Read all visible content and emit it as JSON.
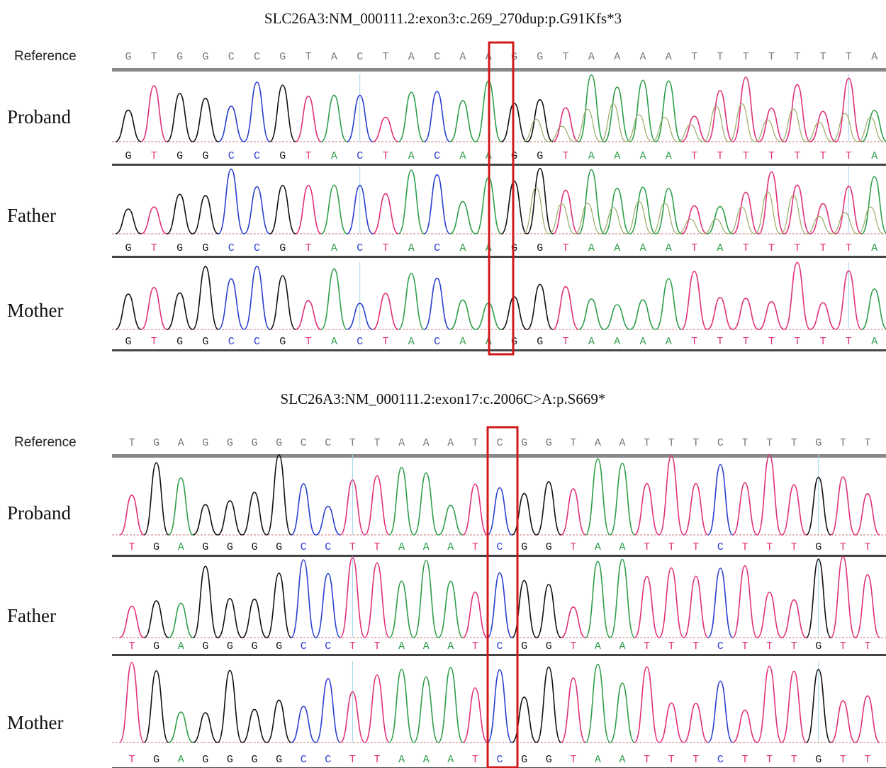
{
  "panels": [
    {
      "title": "SLC26A3:NM_000111.2:exon3:c.269_270dup:p.G91Kfs*3",
      "reference_label": "Reference",
      "reference": "GTGGCCGTACTACAAGGTAAAATTTTTTTA",
      "tracks": [
        {
          "label": "Proband",
          "bases": "GTGGCCGTACTACAAGGTAAAATTTTTTTA"
        },
        {
          "label": "Father",
          "bases": "GTGGCCGTACTACAAGGTAAAATATTTTTA"
        },
        {
          "label": "Mother",
          "bases": "GTGGCCGTACTACAAGGTAAAATTTTTTTA"
        }
      ]
    },
    {
      "title": "SLC26A3:NM_000111.2:exon17:c.2006C>A:p.S669*",
      "reference_label": "Reference",
      "reference": "TGAGGGGCCTTAAATCGGTAATTTCTTTGTT",
      "tracks": [
        {
          "label": "Proband",
          "bases": "TGAGGGGCCTTAAATCGGTAATTTCTTTGTT"
        },
        {
          "label": "Father",
          "bases": "TGAGGGGCCTTAAATCGGTAATTTCTTTGTT"
        },
        {
          "label": "Mother",
          "bases": "TGAGGGGCCTTAAATCGGTAATTTCTTTGTT"
        }
      ]
    }
  ]
}
